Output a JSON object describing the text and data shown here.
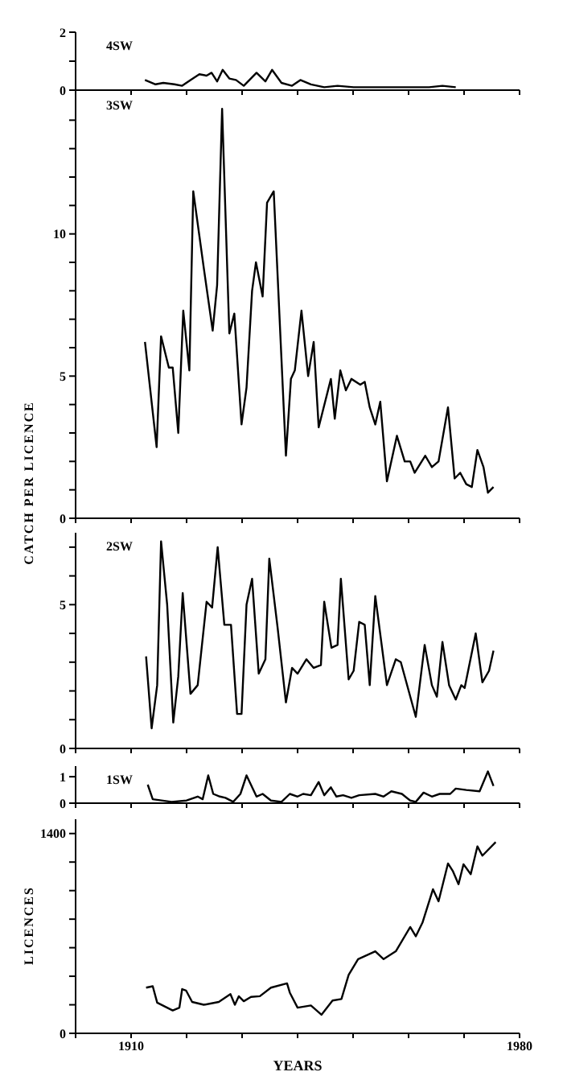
{
  "chart_data": [
    {
      "type": "line",
      "title": "4SW",
      "xlim": [
        1900,
        1980
      ],
      "xticks": [
        {
          "value": 1900,
          "label": null
        },
        {
          "value": 1910,
          "label": null
        },
        {
          "value": 1920,
          "label": null
        },
        {
          "value": 1930,
          "label": null
        },
        {
          "value": 1940,
          "label": null
        },
        {
          "value": 1950,
          "label": null
        },
        {
          "value": 1960,
          "label": null
        },
        {
          "value": 1970,
          "label": null
        },
        {
          "value": 1980,
          "label": null
        }
      ],
      "ylim": [
        0,
        2
      ],
      "yticks": [
        0,
        {
          "value": 1,
          "label": null
        },
        2
      ],
      "tick_labels": "y",
      "series": [
        {
          "color": "#000000",
          "x": [
            1912.5,
            1914.4,
            1915.8,
            1917.8,
            1919.2,
            1920.7,
            1922.3,
            1923.6,
            1924.5,
            1925.5,
            1926.5,
            1927.7,
            1928.9,
            1930.3,
            1932.6,
            1934.2,
            1935.4,
            1937.1,
            1939,
            1940.5,
            1942.4,
            1944.8,
            1947.2,
            1950.1,
            1954,
            1958.8,
            1963.7,
            1966.1,
            1968.5
          ],
          "values": [
            0.35,
            0.2,
            0.25,
            0.2,
            0.15,
            0.35,
            0.55,
            0.5,
            0.6,
            0.3,
            0.7,
            0.4,
            0.35,
            0.15,
            0.6,
            0.3,
            0.7,
            0.25,
            0.15,
            0.35,
            0.2,
            0.1,
            0.15,
            0.1,
            0.1,
            0.1,
            0.1,
            0.15,
            0.1
          ]
        }
      ]
    },
    {
      "type": "line",
      "title": "3SW",
      "ylabel": "CATCH PER LICENCE",
      "xlim": [
        1900,
        1980
      ],
      "xticks": [
        {
          "value": 1900,
          "label": null
        },
        {
          "value": 1910,
          "label": null
        },
        {
          "value": 1920,
          "label": null
        },
        {
          "value": 1930,
          "label": null
        },
        {
          "value": 1940,
          "label": null
        },
        {
          "value": 1950,
          "label": null
        },
        {
          "value": 1960,
          "label": null
        },
        {
          "value": 1970,
          "label": null
        },
        {
          "value": 1980,
          "label": null
        }
      ],
      "ylim": [
        0,
        15
      ],
      "yticks": [
        0,
        {
          "value": 1,
          "label": null
        },
        {
          "value": 2,
          "label": null
        },
        {
          "value": 3,
          "label": null
        },
        {
          "value": 4,
          "label": null
        },
        5,
        {
          "value": 6,
          "label": null
        },
        {
          "value": 7,
          "label": null
        },
        {
          "value": 8,
          "label": null
        },
        {
          "value": 9,
          "label": null
        },
        10,
        {
          "value": 11,
          "label": null
        },
        {
          "value": 12,
          "label": null
        },
        {
          "value": 13,
          "label": null
        },
        {
          "value": 14,
          "label": null
        }
      ],
      "tick_labels": "y",
      "series": [
        {
          "color": "#000000",
          "x": [
            1912.5,
            1914.6,
            1915.4,
            1916.8,
            1917.5,
            1918.5,
            1919.4,
            1920.5,
            1921.2,
            1923.1,
            1924.7,
            1925.5,
            1926.4,
            1927.7,
            1928.6,
            1929.9,
            1930.8,
            1931.8,
            1932.5,
            1933.7,
            1934.5,
            1935.7,
            1937.9,
            1938.8,
            1939.5,
            1940.7,
            1941.9,
            1942.9,
            1943.8,
            1946,
            1946.7,
            1947.7,
            1948.7,
            1949.7,
            1951.3,
            1952.1,
            1953,
            1954,
            1954.9,
            1956.1,
            1957.9,
            1959.3,
            1960.3,
            1961.1,
            1963,
            1964.2,
            1965.4,
            1967.1,
            1968.3,
            1969.3,
            1970.4,
            1971.4,
            1972.4,
            1973.5,
            1974.3,
            1975.3
          ],
          "values": [
            6.2,
            2.5,
            6.4,
            5.3,
            5.3,
            3.0,
            7.3,
            5.2,
            11.5,
            8.8,
            6.6,
            8.2,
            14.4,
            6.5,
            7.2,
            3.3,
            4.6,
            8.0,
            9.0,
            7.8,
            11.1,
            11.5,
            2.2,
            4.9,
            5.2,
            7.3,
            5.0,
            6.2,
            3.2,
            4.9,
            3.5,
            5.2,
            4.5,
            4.9,
            4.7,
            4.8,
            3.9,
            3.3,
            4.1,
            1.3,
            2.9,
            2.0,
            2.0,
            1.6,
            2.2,
            1.8,
            2.0,
            3.9,
            1.4,
            1.6,
            1.2,
            1.1,
            2.4,
            1.8,
            0.9,
            1.1
          ]
        }
      ]
    },
    {
      "type": "line",
      "title": "2SW",
      "xlim": [
        1900,
        1980
      ],
      "xticks": [
        {
          "value": 1900,
          "label": null
        },
        {
          "value": 1910,
          "label": null
        },
        {
          "value": 1920,
          "label": null
        },
        {
          "value": 1930,
          "label": null
        },
        {
          "value": 1940,
          "label": null
        },
        {
          "value": 1950,
          "label": null
        },
        {
          "value": 1960,
          "label": null
        },
        {
          "value": 1970,
          "label": null
        },
        {
          "value": 1980,
          "label": null
        }
      ],
      "ylim": [
        0,
        7.5
      ],
      "yticks": [
        0,
        {
          "value": 1,
          "label": null
        },
        {
          "value": 2,
          "label": null
        },
        {
          "value": 3,
          "label": null
        },
        {
          "value": 4,
          "label": null
        },
        5,
        {
          "value": 6,
          "label": null
        },
        {
          "value": 7,
          "label": null
        }
      ],
      "tick_labels": "y",
      "series": [
        {
          "color": "#000000",
          "x": [
            1912.7,
            1913.7,
            1914.7,
            1915.4,
            1916.5,
            1917.6,
            1918.5,
            1919.3,
            1920.7,
            1922,
            1923.6,
            1924.6,
            1925.6,
            1926.8,
            1928,
            1929.1,
            1929.9,
            1930.8,
            1931.8,
            1933,
            1934.2,
            1934.9,
            1936.4,
            1937.9,
            1939,
            1940,
            1941.6,
            1942.9,
            1944.2,
            1944.8,
            1946.1,
            1947.2,
            1947.8,
            1949.2,
            1950.1,
            1951.1,
            1952.1,
            1953,
            1954,
            1956.1,
            1957.7,
            1958.6,
            1961.3,
            1962.9,
            1964.2,
            1965.1,
            1966.1,
            1967.3,
            1968.5,
            1969.5,
            1970.1,
            1972.1,
            1973.3,
            1974.5,
            1975.3
          ],
          "values": [
            3.2,
            0.7,
            2.2,
            7.2,
            5.0,
            0.9,
            2.5,
            5.4,
            1.9,
            2.2,
            5.1,
            4.9,
            7.0,
            4.3,
            4.3,
            1.2,
            1.2,
            5.0,
            5.9,
            2.6,
            3.1,
            6.6,
            4.2,
            1.6,
            2.8,
            2.6,
            3.1,
            2.8,
            2.9,
            5.1,
            3.5,
            3.6,
            5.9,
            2.4,
            2.7,
            4.4,
            4.3,
            2.2,
            5.3,
            2.2,
            3.1,
            3.0,
            1.1,
            3.6,
            2.2,
            1.8,
            3.7,
            2.2,
            1.7,
            2.2,
            2.1,
            4.0,
            2.3,
            2.7,
            3.4
          ]
        }
      ]
    },
    {
      "type": "line",
      "title": "1SW",
      "xlim": [
        1900,
        1980
      ],
      "xticks": [
        {
          "value": 1900,
          "label": null
        },
        {
          "value": 1910,
          "label": null
        },
        {
          "value": 1920,
          "label": null
        },
        {
          "value": 1930,
          "label": null
        },
        {
          "value": 1940,
          "label": null
        },
        {
          "value": 1950,
          "label": null
        },
        {
          "value": 1960,
          "label": null
        },
        {
          "value": 1970,
          "label": null
        },
        {
          "value": 1980,
          "label": null
        }
      ],
      "ylim": [
        0,
        1.4
      ],
      "yticks": [
        0,
        1
      ],
      "tick_labels": "y",
      "series": [
        {
          "color": "#000000",
          "x": [
            1913,
            1913.9,
            1917.3,
            1920,
            1922,
            1922.9,
            1923.9,
            1924.8,
            1926,
            1927,
            1928.4,
            1929.7,
            1930.8,
            1932.6,
            1933.7,
            1935.2,
            1937.1,
            1938.6,
            1940,
            1941,
            1942.4,
            1943.8,
            1944.8,
            1946,
            1947,
            1948.2,
            1949.7,
            1951.1,
            1954,
            1955.5,
            1956.9,
            1958.8,
            1960.3,
            1961.3,
            1962.7,
            1964.2,
            1965.6,
            1967.5,
            1968.5,
            1970.4,
            1972.8,
            1974.3,
            1975.3
          ],
          "values": [
            0.7,
            0.15,
            0.05,
            0.1,
            0.25,
            0.15,
            1.05,
            0.35,
            0.25,
            0.2,
            0.05,
            0.35,
            1.05,
            0.25,
            0.35,
            0.1,
            0.05,
            0.35,
            0.25,
            0.35,
            0.3,
            0.8,
            0.3,
            0.6,
            0.25,
            0.3,
            0.2,
            0.3,
            0.35,
            0.25,
            0.45,
            0.35,
            0.1,
            0.05,
            0.4,
            0.25,
            0.35,
            0.35,
            0.55,
            0.5,
            0.45,
            1.2,
            0.65
          ]
        }
      ]
    },
    {
      "type": "line",
      "xlabel": "YEARS",
      "ylabel": "LICENCES",
      "xlim": [
        1900,
        1980
      ],
      "xticks": [
        {
          "value": 1900,
          "label": null
        },
        1910,
        {
          "value": 1920,
          "label": null
        },
        {
          "value": 1930,
          "label": null
        },
        {
          "value": 1940,
          "label": null
        },
        {
          "value": 1950,
          "label": null
        },
        {
          "value": 1960,
          "label": null
        },
        {
          "value": 1970,
          "label": null
        },
        1980
      ],
      "ylim": [
        0,
        1500
      ],
      "yticks": [
        0,
        {
          "value": 200,
          "label": null
        },
        {
          "value": 400,
          "label": null
        },
        {
          "value": 600,
          "label": null
        },
        {
          "value": 800,
          "label": null
        },
        {
          "value": 1000,
          "label": null
        },
        {
          "value": 1200,
          "label": null
        },
        1400
      ],
      "series": [
        {
          "color": "#000000",
          "x": [
            1912.7,
            1913.9,
            1914.7,
            1917.5,
            1918.7,
            1919.2,
            1919.9,
            1921,
            1923.1,
            1925.8,
            1927.9,
            1928.7,
            1929.4,
            1930.3,
            1931.6,
            1933.2,
            1935.2,
            1938.1,
            1938.6,
            1940,
            1942.4,
            1944.3,
            1946.3,
            1947.9,
            1949.2,
            1950.9,
            1954,
            1955.5,
            1957.7,
            1960.3,
            1961.3,
            1962.5,
            1964.4,
            1965.4,
            1967.1,
            1968,
            1969,
            1969.9,
            1971.2,
            1972.4,
            1973.3,
            1975.7
          ],
          "values": [
            320,
            330,
            215,
            160,
            180,
            310,
            300,
            220,
            200,
            220,
            275,
            200,
            260,
            225,
            255,
            260,
            320,
            350,
            285,
            180,
            195,
            130,
            230,
            240,
            410,
            520,
            575,
            520,
            575,
            745,
            680,
            775,
            1010,
            925,
            1190,
            1135,
            1045,
            1185,
            1115,
            1310,
            1245,
            1340
          ]
        }
      ]
    }
  ]
}
